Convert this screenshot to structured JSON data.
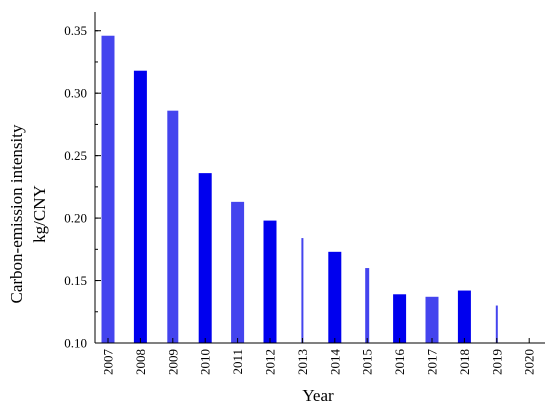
{
  "chart_data": {
    "type": "bar",
    "xlabel": "Year",
    "ylabel_lines": [
      "Carbon-emission intensity",
      "kg/CNY"
    ],
    "categories": [
      "2007",
      "2008",
      "2009",
      "2010",
      "2011",
      "2012",
      "2013",
      "2014",
      "2015",
      "2016",
      "2017",
      "2018",
      "2019",
      "2020"
    ],
    "values": [
      0.346,
      0.318,
      0.286,
      0.236,
      0.213,
      0.198,
      0.184,
      0.173,
      0.16,
      0.139,
      0.137,
      0.142,
      0.13,
      null
    ],
    "ylim": [
      0.1,
      0.365
    ],
    "yticks": [
      "0.10",
      "0.15",
      "0.20",
      "0.25",
      "0.30",
      "0.35"
    ],
    "ytick_values": [
      0.1,
      0.15,
      0.2,
      0.25,
      0.3,
      0.35
    ],
    "colors": {
      "bar_dark": "#0000ee",
      "bar_light": "#4444ee"
    },
    "grid": false
  }
}
